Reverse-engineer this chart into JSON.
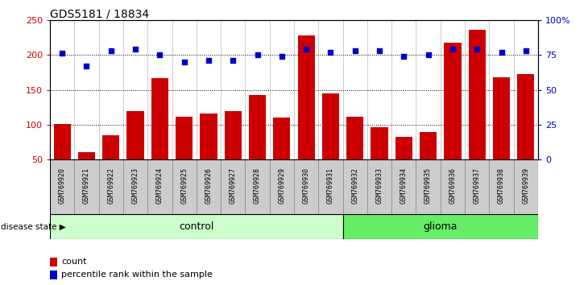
{
  "title": "GDS5181 / 18834",
  "samples": [
    "GSM769920",
    "GSM769921",
    "GSM769922",
    "GSM769923",
    "GSM769924",
    "GSM769925",
    "GSM769926",
    "GSM769927",
    "GSM769928",
    "GSM769929",
    "GSM769930",
    "GSM769931",
    "GSM769932",
    "GSM769933",
    "GSM769934",
    "GSM769935",
    "GSM769936",
    "GSM769937",
    "GSM769938",
    "GSM769939"
  ],
  "counts": [
    101,
    61,
    85,
    120,
    167,
    111,
    116,
    120,
    143,
    110,
    228,
    145,
    111,
    96,
    82,
    89,
    218,
    236,
    168,
    173
  ],
  "percentiles": [
    76,
    67,
    78,
    79,
    75,
    70,
    71,
    71,
    75,
    74,
    79,
    77,
    78,
    78,
    74,
    75,
    79,
    79,
    77,
    78
  ],
  "control_count": 12,
  "glioma_count": 8,
  "bar_color": "#cc0000",
  "dot_color": "#0000cc",
  "ylim_left": [
    50,
    250
  ],
  "ylim_right": [
    0,
    100
  ],
  "yticks_left": [
    50,
    100,
    150,
    200,
    250
  ],
  "yticks_right": [
    0,
    25,
    50,
    75,
    100
  ],
  "ytick_labels_right": [
    "0",
    "25",
    "50",
    "75",
    "100%"
  ],
  "control_color": "#ccffcc",
  "glioma_color": "#66ee66",
  "tick_bg_color": "#cccccc",
  "legend_count_label": "count",
  "legend_pct_label": "percentile rank within the sample",
  "disease_state_label": "disease state",
  "control_label": "control",
  "glioma_label": "glioma",
  "fig_width": 7.3,
  "fig_height": 3.54,
  "dpi": 100
}
